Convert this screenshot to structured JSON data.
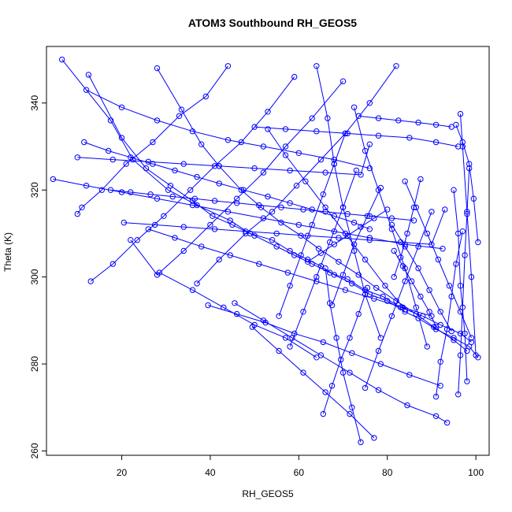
{
  "chart_data": {
    "type": "line",
    "title": "ATOM3 Southbound RH_GEOS5",
    "xlabel": "RH_GEOS5",
    "ylabel": "Theta (K)",
    "xlim": [
      3,
      103
    ],
    "ylim": [
      259,
      353
    ],
    "x_ticks": [
      20,
      40,
      60,
      80,
      100
    ],
    "y_ticks": [
      260,
      280,
      300,
      320,
      340
    ],
    "grid": false,
    "legend": "none",
    "colors": {
      "series": "#0000ff",
      "axes": "#000000"
    },
    "markers": "open-circle",
    "series": [
      {
        "x": [
          6.5,
          17.5,
          22.5,
          30.5,
          37.0,
          44.5,
          49.0,
          54.0,
          58.0,
          62.0,
          65.0,
          68.0,
          72.0,
          76.0,
          80.0,
          84.0,
          87.0,
          91.0,
          95.0,
          98.5,
          100.5
        ],
        "y": [
          350.0,
          336.0,
          327.0,
          320.0,
          316.5,
          313.0,
          310.0,
          308.5,
          306.0,
          304.0,
          302.5,
          300.5,
          298.5,
          296.0,
          294.5,
          292.0,
          290.5,
          288.0,
          286.0,
          284.0,
          281.5
        ]
      },
      {
        "x": [
          12.5,
          20.0,
          25.5,
          31.0,
          36.0,
          40.5,
          45.0,
          50.0,
          55.0,
          59.0,
          63.0,
          67.0,
          71.0,
          75.0,
          79.0,
          83.0,
          88.0,
          92.0,
          96.5,
          99.0
        ],
        "y": [
          346.5,
          332.0,
          325.0,
          321.0,
          317.5,
          314.0,
          312.0,
          309.5,
          307.0,
          305.0,
          303.0,
          301.0,
          299.5,
          297.0,
          295.5,
          293.0,
          291.0,
          289.0,
          287.0,
          285.0
        ]
      },
      {
        "x": [
          28.0,
          33.5,
          38.0,
          42.0,
          47.0,
          51.5,
          56.0,
          60.5,
          64.5,
          69.0,
          73.5,
          77.5,
          82.0,
          86.5,
          90.5,
          95.0,
          98.0
        ],
        "y": [
          348.0,
          338.5,
          330.5,
          325.5,
          320.0,
          316.0,
          312.5,
          309.5,
          306.5,
          303.5,
          300.5,
          297.5,
          294.5,
          291.5,
          288.5,
          285.5,
          283.0
        ]
      },
      {
        "x": [
          44.0,
          39.0,
          33.0,
          27.0,
          21.0,
          15.5,
          11.0,
          10.0
        ],
        "y": [
          348.5,
          341.5,
          337.0,
          331.0,
          326.0,
          320.0,
          316.0,
          314.5
        ]
      },
      {
        "x": [
          59.0,
          53.0,
          47.0,
          41.0,
          35.5,
          29.5,
          23.5,
          18.0,
          13.0
        ],
        "y": [
          346.0,
          338.0,
          331.0,
          325.5,
          320.0,
          314.0,
          308.5,
          303.0,
          299.0
        ]
      },
      {
        "x": [
          70.0,
          63.0,
          57.0,
          52.0,
          46.0,
          40.0,
          34.0,
          28.0,
          22.0
        ],
        "y": [
          345.0,
          336.5,
          330.0,
          324.0,
          318.0,
          312.0,
          306.0,
          300.5,
          308.5
        ]
      },
      {
        "x": [
          82.0,
          76.0,
          70.5,
          65.0,
          59.5,
          54.0,
          48.0,
          42.0,
          37.0
        ],
        "y": [
          348.5,
          340.0,
          333.0,
          327.0,
          321.0,
          315.0,
          310.0,
          304.0,
          298.5
        ]
      },
      {
        "x": [
          64.0,
          66.5,
          68.0,
          70.0,
          72.5,
          75.0,
          78.5
        ],
        "y": [
          348.5,
          336.5,
          326.0,
          316.0,
          306.0,
          296.0,
          286.0
        ]
      },
      {
        "x": [
          12.0,
          20.0,
          28.0,
          36.0,
          44.0,
          52.0,
          60.0,
          68.0,
          76.0
        ],
        "y": [
          343.0,
          339.0,
          336.0,
          333.5,
          331.5,
          330.0,
          328.5,
          327.0,
          325.0
        ]
      },
      {
        "x": [
          10.0,
          18.0,
          26.0,
          34.0,
          42.0,
          50.0,
          58.0,
          66.0,
          74.0,
          76.0
        ],
        "y": [
          327.5,
          327.0,
          326.5,
          326.0,
          325.5,
          325.0,
          324.5,
          324.0,
          323.5,
          330.5
        ]
      },
      {
        "x": [
          11.5,
          17.0,
          22.0,
          27.0,
          32.0,
          37.0,
          42.0,
          47.5,
          53.0,
          58.0,
          63.0,
          68.0,
          72.5,
          76.0
        ],
        "y": [
          331.0,
          329.0,
          327.5,
          326.0,
          324.5,
          323.0,
          321.5,
          320.0,
          318.5,
          317.0,
          315.5,
          314.0,
          312.5,
          311.0
        ]
      },
      {
        "x": [
          17.5,
          22.0,
          26.5,
          31.5,
          36.5,
          41.0,
          46.0,
          51.0,
          56.0,
          61.0,
          66.0,
          71.0,
          76.0,
          81.0,
          86.0
        ],
        "y": [
          320.0,
          319.5,
          319.0,
          318.5,
          318.0,
          317.5,
          317.0,
          316.5,
          316.0,
          315.5,
          315.0,
          314.5,
          314.0,
          313.5,
          313.0
        ]
      },
      {
        "x": [
          4.5,
          12.0,
          20.0,
          28.0,
          36.0,
          44.0,
          52.0,
          60.0,
          68.0,
          76.0,
          84.0,
          92.5
        ],
        "y": [
          322.5,
          321.0,
          319.5,
          318.0,
          316.5,
          315.0,
          313.5,
          312.0,
          310.5,
          309.0,
          307.5,
          306.5
        ]
      },
      {
        "x": [
          20.5,
          27.5,
          34.0,
          41.0,
          48.0,
          55.0,
          62.0,
          69.0,
          76.0,
          83.0,
          90.0,
          93.0
        ],
        "y": [
          312.5,
          312.0,
          311.5,
          311.0,
          310.5,
          310.0,
          309.5,
          309.0,
          308.5,
          308.0,
          307.5,
          315.5
        ]
      },
      {
        "x": [
          26.0,
          32.0,
          38.0,
          44.5,
          51.0,
          57.5,
          64.0,
          70.5,
          77.0,
          83.5,
          90.0
        ],
        "y": [
          311.0,
          309.0,
          307.0,
          305.0,
          303.0,
          301.0,
          299.0,
          297.0,
          295.0,
          293.0,
          291.0
        ]
      },
      {
        "x": [
          39.5,
          46.0,
          52.5,
          59.0,
          65.5,
          72.0,
          78.5,
          85.0,
          92.0
        ],
        "y": [
          293.5,
          291.5,
          289.5,
          287.0,
          285.0,
          282.5,
          280.0,
          277.5,
          275.0
        ]
      },
      {
        "x": [
          45.5,
          52.0,
          58.5,
          65.0,
          71.5,
          78.0,
          84.5,
          91.0,
          93.5
        ],
        "y": [
          294.0,
          290.0,
          286.0,
          282.0,
          278.0,
          274.0,
          270.5,
          268.0,
          266.5
        ]
      },
      {
        "x": [
          28.5,
          36.0,
          43.0,
          50.0,
          57.0,
          64.0
        ],
        "y": [
          301.0,
          297.0,
          293.0,
          289.0,
          286.0,
          281.5
        ]
      },
      {
        "x": [
          49.5,
          55.5,
          61.0,
          66.0,
          71.5,
          77.0
        ],
        "y": [
          288.5,
          283.0,
          278.0,
          273.5,
          268.5,
          263.0
        ]
      },
      {
        "x": [
          65.5,
          67.5,
          69.5,
          71.5,
          73.5,
          75.5
        ],
        "y": [
          268.5,
          275.0,
          281.0,
          286.0,
          291.5,
          297.5
        ]
      },
      {
        "x": [
          74.0,
          72.0,
          70.0,
          68.5,
          67.0,
          66.0
        ],
        "y": [
          262.0,
          270.0,
          278.0,
          286.0,
          294.0,
          302.0
        ]
      },
      {
        "x": [
          75.0,
          78.0,
          81.0,
          84.0,
          87.0,
          90.0
        ],
        "y": [
          274.5,
          283.0,
          291.0,
          299.0,
          307.0,
          315.0
        ]
      },
      {
        "x": [
          91.0,
          92.0,
          93.5,
          94.5,
          95.5,
          97.0
        ],
        "y": [
          272.5,
          280.5,
          288.0,
          295.5,
          303.0,
          310.5
        ]
      },
      {
        "x": [
          96.0,
          96.5,
          97.0,
          97.5,
          98.0,
          98.5
        ],
        "y": [
          273.0,
          282.0,
          293.0,
          305.0,
          314.5,
          325.0
        ]
      },
      {
        "x": [
          98.0,
          97.5,
          96.5,
          96.0,
          95.0
        ],
        "y": [
          276.0,
          287.0,
          298.0,
          310.0,
          320.0
        ]
      },
      {
        "x": [
          100.0,
          99.0,
          98.0,
          97.0,
          96.5
        ],
        "y": [
          282.0,
          300.0,
          315.0,
          330.0,
          337.5
        ]
      },
      {
        "x": [
          100.5,
          99.5,
          98.5,
          97.0,
          95.5
        ],
        "y": [
          308.0,
          318.0,
          326.0,
          331.0,
          335.0
        ]
      },
      {
        "x": [
          73.5,
          78.0,
          82.5,
          87.0,
          91.0,
          94.5
        ],
        "y": [
          337.0,
          336.5,
          336.0,
          335.5,
          335.0,
          334.5
        ]
      },
      {
        "x": [
          50.0,
          57.0,
          64.0,
          71.0,
          78.0,
          85.0,
          91.0,
          96.0
        ],
        "y": [
          334.5,
          334.0,
          333.5,
          333.0,
          332.5,
          332.0,
          331.0,
          330.0
        ]
      },
      {
        "x": [
          53.0,
          57.0,
          61.5,
          66.0,
          70.5,
          75.0,
          79.5,
          84.0
        ],
        "y": [
          334.0,
          328.0,
          322.0,
          316.0,
          310.0,
          304.0,
          298.0,
          292.5
        ]
      },
      {
        "x": [
          72.5,
          75.0,
          78.0,
          81.0,
          84.0,
          86.5,
          89.0
        ],
        "y": [
          339.0,
          329.0,
          320.0,
          311.0,
          302.0,
          293.0,
          284.0
        ]
      },
      {
        "x": [
          58.0,
          61.0,
          64.0,
          67.0,
          70.0,
          73.0
        ],
        "y": [
          284.0,
          292.0,
          300.0,
          308.0,
          316.0,
          324.5
        ]
      },
      {
        "x": [
          55.5,
          58.0,
          60.5,
          63.0,
          65.5,
          68.0,
          70.5
        ],
        "y": [
          291.0,
          298.0,
          305.0,
          312.0,
          319.0,
          326.0,
          333.0
        ]
      },
      {
        "x": [
          81.0,
          84.0,
          87.0,
          89.5,
          92.0,
          94.5
        ],
        "y": [
          312.0,
          307.0,
          302.0,
          297.0,
          292.0,
          287.5
        ]
      },
      {
        "x": [
          81.5,
          83.5,
          85.5,
          87.5,
          89.5,
          91.0
        ],
        "y": [
          306.0,
          302.5,
          299.0,
          295.5,
          292.0,
          288.5
        ]
      },
      {
        "x": [
          84.0,
          86.5,
          89.0,
          91.5,
          94.0,
          96.5,
          99.0
        ],
        "y": [
          322.0,
          316.0,
          310.0,
          304.0,
          298.0,
          292.0,
          286.0
        ]
      },
      {
        "x": [
          87.5,
          86.0,
          84.5,
          83.0,
          81.5
        ],
        "y": [
          322.5,
          316.0,
          310.0,
          304.5,
          300.0
        ]
      },
      {
        "x": [
          67.5,
          70.0,
          72.5,
          75.5,
          78.5
        ],
        "y": [
          293.5,
          300.5,
          307.5,
          314.0,
          320.5
        ]
      },
      {
        "x": [
          62.0,
          65.0,
          68.0,
          71.0,
          74.0,
          77.0,
          80.0
        ],
        "y": [
          303.5,
          305.5,
          307.5,
          309.5,
          311.5,
          313.5,
          315.5
        ]
      }
    ]
  }
}
